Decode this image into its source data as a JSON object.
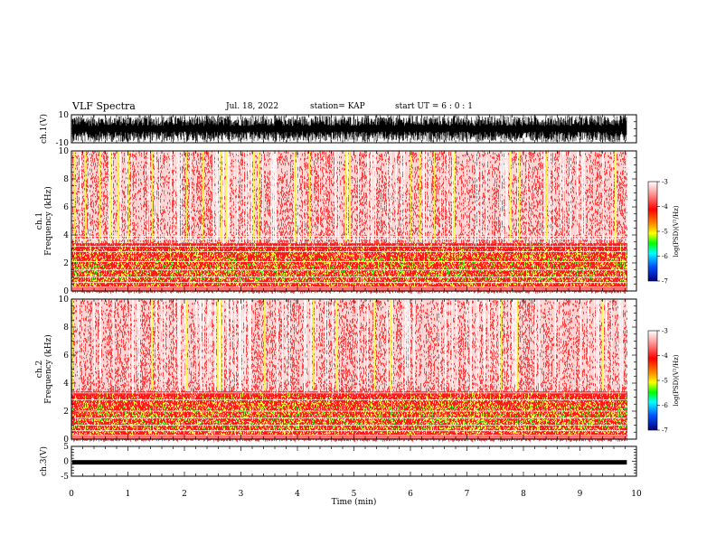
{
  "header": {
    "title": "VLF Spectra",
    "date": "Jul. 18, 2022",
    "station": "station= KAP",
    "start": "start  UT =  6 : 0 : 1"
  },
  "chart_data": [
    {
      "type": "line",
      "panel": "ch1-waveform",
      "ylabel": "ch.1(V)",
      "ylim": [
        -10,
        10
      ],
      "y_ticks": [
        "10",
        "-10"
      ],
      "xlim": [
        0,
        10
      ]
    },
    {
      "type": "heatmap",
      "panel": "ch1-spectrogram",
      "ylabel": "ch.1\nFrequency (kHz)",
      "ylim": [
        0,
        10
      ],
      "y_ticks": [
        "0",
        "2",
        "4",
        "6",
        "8",
        "10"
      ],
      "xlim": [
        0,
        10
      ],
      "data_end_min": 9.83,
      "colorbar": {
        "label": "log(PSD)(V²/Hz)",
        "range": [
          -7,
          -3
        ],
        "ticks": [
          "-3",
          "-4",
          "-5",
          "-6",
          "-7"
        ]
      }
    },
    {
      "type": "heatmap",
      "panel": "ch2-spectrogram",
      "ylabel": "ch.2\nFrequency (kHz)",
      "ylim": [
        0,
        10
      ],
      "y_ticks": [
        "0",
        "2",
        "4",
        "6",
        "8",
        "10"
      ],
      "xlim": [
        0,
        10
      ],
      "data_end_min": 9.83,
      "colorbar": {
        "label": "log(PSD)(V²/Hz)",
        "range": [
          -7,
          -3
        ],
        "ticks": [
          "-3",
          "-4",
          "-5",
          "-6",
          "-7"
        ]
      }
    },
    {
      "type": "line",
      "panel": "ch3-waveform",
      "ylabel": "ch.3(V)",
      "ylim": [
        -5,
        5
      ],
      "y_ticks": [
        "5",
        "0",
        "-5"
      ],
      "xlim": [
        0,
        10
      ],
      "xlabel": "Time (min)",
      "x_ticks": [
        "0",
        "1",
        "2",
        "3",
        "4",
        "5",
        "6",
        "7",
        "8",
        "9",
        "10"
      ]
    }
  ],
  "colors": {
    "spectro_bg": "#ffd6d6",
    "spectro_red": "#ff1a1a",
    "spectro_yellow": "#ffff33",
    "spectro_green": "#33ff33",
    "trace": "#000000"
  }
}
